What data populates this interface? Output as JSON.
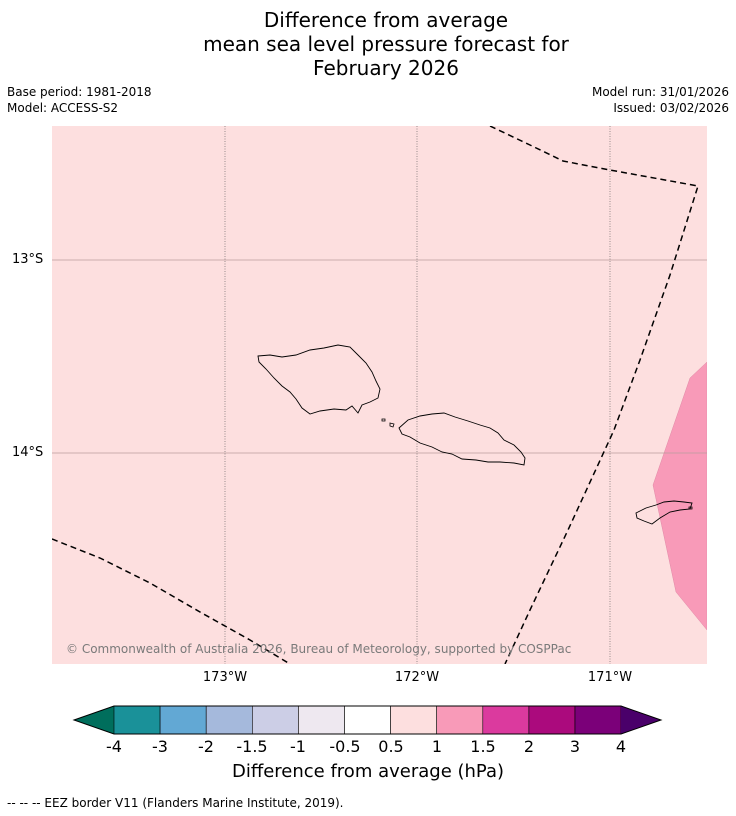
{
  "title": {
    "line1": "Difference from average",
    "line2": "mean sea level pressure forecast for",
    "line3": "February 2026"
  },
  "meta": {
    "base_period": "Base period: 1981-2018",
    "model": "Model: ACCESS-S2",
    "model_run": "Model run: 31/01/2026",
    "issued": "Issued: 03/02/2026"
  },
  "map": {
    "lat_labels": [
      "13°S",
      "14°S"
    ],
    "lon_labels": [
      "173°W",
      "172°W",
      "171°W"
    ],
    "copyright": "© Commonwealth of Australia 2026, Bureau of Meteorology, supported by COSPPac",
    "background_category": "0.5 to 1",
    "highlight_category": "1 to 1.5"
  },
  "colorbar": {
    "ticks": [
      "-4",
      "-3",
      "-2",
      "-1.5",
      "-1",
      "-0.5",
      "0.5",
      "1",
      "1.5",
      "2",
      "3",
      "4"
    ],
    "colors": [
      "#006e5c",
      "#1a9199",
      "#62a8d4",
      "#a5b9dc",
      "#cccee6",
      "#eee8f0",
      "#ffffff",
      "#fddfdf",
      "#f89ab8",
      "#db3a9e",
      "#ab0a7d",
      "#7b0079",
      "#4a006a"
    ],
    "label": "Difference from average (hPa)"
  },
  "footer": "--  --  -- EEZ border V11 (Flanders Marine Institute, 2019)."
}
